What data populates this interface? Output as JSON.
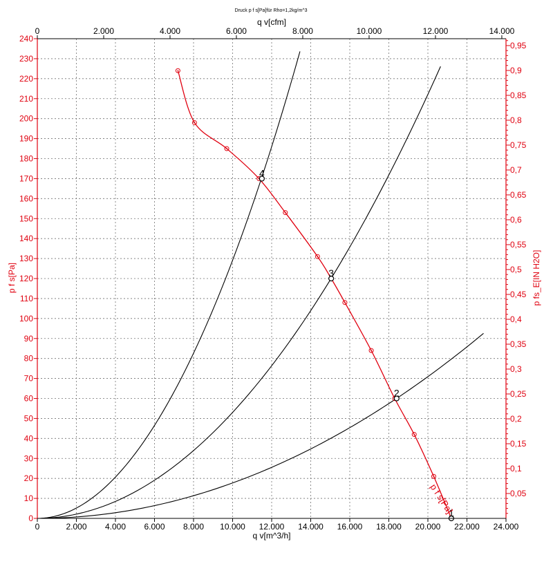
{
  "chart_data": {
    "type": "line",
    "title": "Druck p f s[Pa]für Rho=1,2kg/m^3",
    "x_top_label": "q v[cfm]",
    "x_bottom_label": "q v[m^3/h]",
    "y_left_label": "p f s[Pa]",
    "y_right_label": "p fs_E[IN H2O]",
    "xlim": [
      0,
      24000
    ],
    "ylim": [
      0,
      240
    ],
    "top_xlim": [
      0,
      14126
    ],
    "right_ylim": [
      0,
      0.9638
    ],
    "x_ticks": [
      "0",
      "2.000",
      "4.000",
      "6.000",
      "8.000",
      "10.000",
      "12.000",
      "14.000",
      "16.000",
      "18.000",
      "20.000",
      "22.000",
      "24.000"
    ],
    "top_ticks": [
      "0",
      "2.000",
      "4.000",
      "6.000",
      "8.000",
      "10.000",
      "12.000",
      "14.000"
    ],
    "y_ticks": [
      "0",
      "10",
      "20",
      "30",
      "40",
      "50",
      "60",
      "70",
      "80",
      "90",
      "100",
      "110",
      "120",
      "130",
      "140",
      "150",
      "160",
      "170",
      "180",
      "190",
      "200",
      "210",
      "220",
      "230",
      "240"
    ],
    "right_ticks": [
      "0,05",
      "0,1",
      "0,15",
      "0,2",
      "0,25",
      "0,3",
      "0,35",
      "0,4",
      "0,45",
      "0,5",
      "0,55",
      "0,6",
      "0,65",
      "0,7",
      "0,75",
      "0,8",
      "0,85",
      "0,9",
      "0,95"
    ],
    "grid": true,
    "fan_curve": {
      "name": "p f s[Pa]",
      "color": "#e0000f",
      "points": [
        [
          7200,
          224
        ],
        [
          8050,
          198
        ],
        [
          9700,
          185
        ],
        [
          11350,
          170
        ],
        [
          12700,
          153
        ],
        [
          14350,
          131
        ],
        [
          15050,
          120
        ],
        [
          15750,
          108
        ],
        [
          17100,
          84
        ],
        [
          18300,
          60
        ],
        [
          19300,
          42
        ],
        [
          20300,
          21
        ],
        [
          21200,
          0
        ]
      ]
    },
    "system_curves": [
      {
        "k": 1.2915e-06,
        "x_end": 13450,
        "color": "#000000"
      },
      {
        "k": 5.303e-07,
        "x_end": 20650,
        "color": "#000000"
      },
      {
        "k": 1.773e-07,
        "x_end": 22850,
        "color": "#000000"
      }
    ],
    "operating_points": [
      {
        "label": "1",
        "x": 21200,
        "y": 0
      },
      {
        "label": "2",
        "x": 18400,
        "y": 60
      },
      {
        "label": "3",
        "x": 15050,
        "y": 120
      },
      {
        "label": "4",
        "x": 11500,
        "y": 170
      }
    ]
  }
}
